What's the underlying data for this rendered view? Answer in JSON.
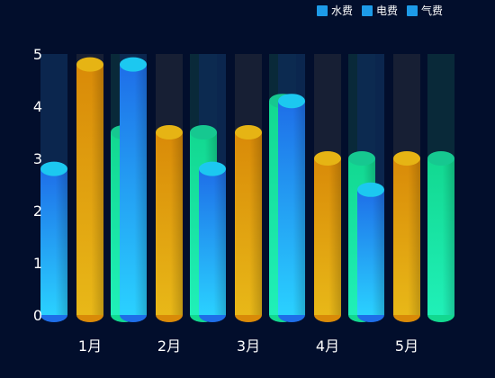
{
  "colors": {
    "background": "#020e2c",
    "water": "#1e90ff",
    "electric": "#f0a500",
    "gas": "#1ee0a0",
    "legend_swatch": "#1d9be8",
    "track": "#1b2236"
  },
  "legend": {
    "items": [
      {
        "label": "水费"
      },
      {
        "label": "电费"
      },
      {
        "label": "气费"
      }
    ]
  },
  "chart_data": {
    "type": "bar",
    "style": "cylinder",
    "categories": [
      "1月",
      "2月",
      "3月",
      "4月",
      "5月"
    ],
    "ylim": [
      0,
      5
    ],
    "yticks": [
      0,
      1,
      2,
      3,
      4,
      5
    ],
    "grid": false,
    "legend_position": "top-right",
    "series": [
      {
        "name": "水费",
        "values": [
          2.8,
          4.8,
          2.8,
          4.1,
          2.4
        ],
        "color": "#1e90ff"
      },
      {
        "name": "电费",
        "values": [
          4.8,
          3.5,
          3.5,
          3.0,
          3.0
        ],
        "color": "#f0a500"
      },
      {
        "name": "气费",
        "values": [
          3.5,
          3.5,
          4.1,
          3.0,
          3.0
        ],
        "color": "#1ee0a0"
      }
    ]
  }
}
